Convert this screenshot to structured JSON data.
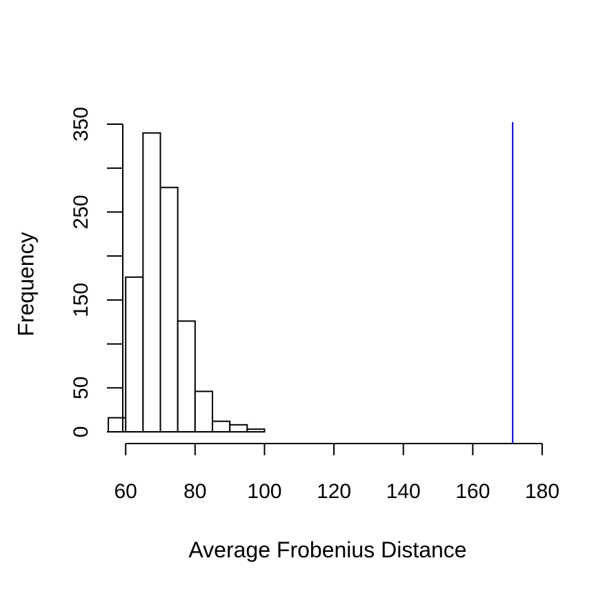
{
  "chart_data": {
    "type": "bar",
    "title": "",
    "xlabel": "Average Frobenius Distance",
    "ylabel": "Frequency",
    "bin_edges": [
      55,
      60,
      65,
      70,
      75,
      80,
      85,
      90,
      95,
      100
    ],
    "values": [
      16,
      176,
      340,
      278,
      126,
      46,
      12,
      8,
      3
    ],
    "xlim": [
      54,
      180
    ],
    "ylim": [
      0,
      350
    ],
    "x_ticks": [
      60,
      80,
      100,
      120,
      140,
      160,
      180
    ],
    "y_ticks": [
      0,
      50,
      150,
      250,
      350
    ],
    "y_minor_ticks": [
      100,
      200,
      300
    ],
    "reference_line": {
      "x": 171.5,
      "color": "#0000cc"
    },
    "grid": false,
    "legend": "none"
  }
}
